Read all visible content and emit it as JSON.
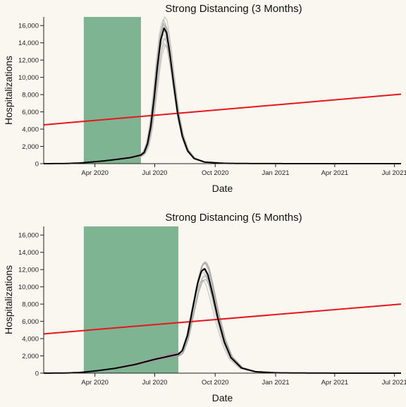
{
  "chart_data": [
    {
      "type": "line",
      "title": "Strong Distancing (3 Months)",
      "xlabel": "Date",
      "ylabel": "Hospitalizations",
      "xlim": [
        "2020-01-14",
        "2021-07-11"
      ],
      "ylim": [
        0,
        17000
      ],
      "x_ticks": [
        {
          "date": "2020-04-01",
          "label": "Apr 2020"
        },
        {
          "date": "2020-07-01",
          "label": "Jul 2020"
        },
        {
          "date": "2020-10-01",
          "label": "Oct 2020"
        },
        {
          "date": "2021-01-01",
          "label": "Jan 2021"
        },
        {
          "date": "2021-04-01",
          "label": "Apr 2021"
        },
        {
          "date": "2021-07-01",
          "label": "Jul 2021"
        }
      ],
      "y_ticks": [
        {
          "value": 0,
          "label": "0"
        },
        {
          "value": 2000,
          "label": "2,000"
        },
        {
          "value": 4000,
          "label": "4,000"
        },
        {
          "value": 6000,
          "label": "6,000"
        },
        {
          "value": 8000,
          "label": "8,000"
        },
        {
          "value": 10000,
          "label": "10,000"
        },
        {
          "value": 12000,
          "label": "12,000"
        },
        {
          "value": 14000,
          "label": "14,000"
        },
        {
          "value": 16000,
          "label": "16,000"
        }
      ],
      "distancing_period": {
        "start": "2020-03-15",
        "end": "2020-06-10",
        "color": "#4e9a6e"
      },
      "capacity_line": {
        "start": {
          "x": "2020-01-14",
          "y": 4500
        },
        "end": {
          "x": "2021-07-11",
          "y": 8050
        },
        "color": "#e8151b"
      },
      "mean_series": {
        "color": "#000000",
        "points": [
          [
            "2020-01-14",
            0
          ],
          [
            "2020-02-15",
            10
          ],
          [
            "2020-03-10",
            80
          ],
          [
            "2020-03-25",
            180
          ],
          [
            "2020-04-15",
            320
          ],
          [
            "2020-05-05",
            500
          ],
          [
            "2020-05-25",
            700
          ],
          [
            "2020-06-10",
            1000
          ],
          [
            "2020-06-15",
            1300
          ],
          [
            "2020-06-20",
            2300
          ],
          [
            "2020-06-25",
            4300
          ],
          [
            "2020-06-30",
            7500
          ],
          [
            "2020-07-05",
            11200
          ],
          [
            "2020-07-10",
            14300
          ],
          [
            "2020-07-15",
            15700
          ],
          [
            "2020-07-19",
            15200
          ],
          [
            "2020-07-24",
            12800
          ],
          [
            "2020-07-30",
            9200
          ],
          [
            "2020-08-05",
            5800
          ],
          [
            "2020-08-12",
            3200
          ],
          [
            "2020-08-20",
            1500
          ],
          [
            "2020-08-30",
            600
          ],
          [
            "2020-09-15",
            180
          ],
          [
            "2020-10-15",
            40
          ],
          [
            "2020-12-01",
            5
          ],
          [
            "2021-07-11",
            0
          ]
        ]
      },
      "ensemble_color": "#9a9a9a"
    },
    {
      "type": "line",
      "title": "Strong Distancing (5 Months)",
      "xlabel": "Date",
      "ylabel": "Hospitalizations",
      "xlim": [
        "2020-01-14",
        "2021-07-11"
      ],
      "ylim": [
        0,
        17000
      ],
      "x_ticks": [
        {
          "date": "2020-04-01",
          "label": "Apr 2020"
        },
        {
          "date": "2020-07-01",
          "label": "Jul 2020"
        },
        {
          "date": "2020-10-01",
          "label": "Oct 2020"
        },
        {
          "date": "2021-01-01",
          "label": "Jan 2021"
        },
        {
          "date": "2021-04-01",
          "label": "Apr 2021"
        },
        {
          "date": "2021-07-01",
          "label": "Jul 2021"
        }
      ],
      "y_ticks": [
        {
          "value": 0,
          "label": "0"
        },
        {
          "value": 2000,
          "label": "2,000"
        },
        {
          "value": 4000,
          "label": "4,000"
        },
        {
          "value": 6000,
          "label": "6,000"
        },
        {
          "value": 8000,
          "label": "8,000"
        },
        {
          "value": 10000,
          "label": "10,000"
        },
        {
          "value": 12000,
          "label": "12,000"
        },
        {
          "value": 14000,
          "label": "14,000"
        },
        {
          "value": 16000,
          "label": "16,000"
        }
      ],
      "distancing_period": {
        "start": "2020-03-15",
        "end": "2020-08-06",
        "color": "#4e9a6e"
      },
      "capacity_line": {
        "start": {
          "x": "2020-01-14",
          "y": 4550
        },
        "end": {
          "x": "2021-07-11",
          "y": 8000
        },
        "color": "#e8151b"
      },
      "mean_series": {
        "color": "#000000",
        "points": [
          [
            "2020-01-14",
            0
          ],
          [
            "2020-02-15",
            10
          ],
          [
            "2020-03-10",
            80
          ],
          [
            "2020-04-01",
            250
          ],
          [
            "2020-05-01",
            550
          ],
          [
            "2020-06-01",
            1000
          ],
          [
            "2020-07-01",
            1600
          ],
          [
            "2020-08-06",
            2200
          ],
          [
            "2020-08-12",
            2600
          ],
          [
            "2020-08-20",
            4400
          ],
          [
            "2020-08-27",
            7200
          ],
          [
            "2020-09-04",
            10300
          ],
          [
            "2020-09-10",
            11800
          ],
          [
            "2020-09-15",
            12100
          ],
          [
            "2020-09-20",
            11400
          ],
          [
            "2020-09-27",
            9200
          ],
          [
            "2020-10-05",
            6400
          ],
          [
            "2020-10-15",
            3600
          ],
          [
            "2020-10-25",
            1800
          ],
          [
            "2020-11-10",
            600
          ],
          [
            "2020-12-01",
            170
          ],
          [
            "2021-01-01",
            40
          ],
          [
            "2021-03-01",
            5
          ],
          [
            "2021-07-11",
            0
          ]
        ]
      },
      "ensemble_color": "#9a9a9a"
    }
  ]
}
